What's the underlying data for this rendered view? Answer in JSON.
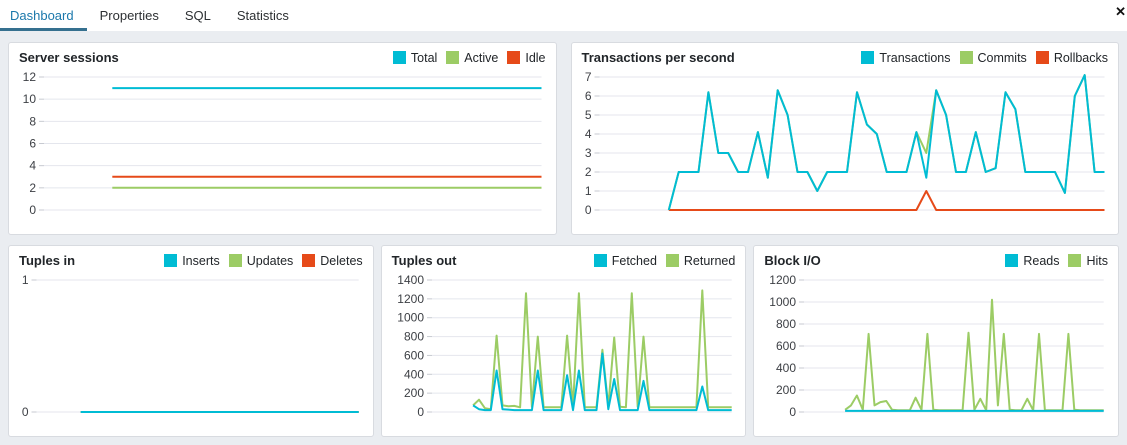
{
  "tab_bar": {
    "tabs": [
      {
        "label": "Dashboard",
        "active": true
      },
      {
        "label": "Properties",
        "active": false
      },
      {
        "label": "SQL",
        "active": false
      },
      {
        "label": "Statistics",
        "active": false
      }
    ],
    "close_icon": "✕"
  },
  "colors": {
    "cyan": "#00bcd4",
    "green": "#9ccc65",
    "red": "#e64a19",
    "active_tab": "#1b78ab",
    "gridline": "#e4e6ed"
  },
  "chart_data": [
    {
      "type": "line",
      "title": "Server sessions",
      "ylim": [
        0,
        12
      ],
      "yticks": [
        0,
        2,
        4,
        6,
        8,
        10,
        12
      ],
      "legend_position": "top-right",
      "grid": "horizontal",
      "series": [
        {
          "name": "Total",
          "color": "#00bcd4",
          "values": [
            null,
            null,
            null,
            null,
            null,
            null,
            null,
            11,
            11,
            11,
            11,
            11,
            11,
            11,
            11,
            11,
            11,
            11,
            11,
            11,
            11,
            11,
            11,
            11,
            11,
            11,
            11,
            11,
            11,
            11,
            11,
            11,
            11,
            11,
            11,
            11,
            11,
            11,
            11,
            11,
            11,
            11,
            11,
            11,
            11,
            11,
            11,
            11,
            11,
            11,
            11,
            11
          ]
        },
        {
          "name": "Active",
          "color": "#9ccc65",
          "values": [
            null,
            null,
            null,
            null,
            null,
            null,
            null,
            2,
            2,
            2,
            2,
            2,
            2,
            2,
            2,
            2,
            2,
            2,
            2,
            2,
            2,
            2,
            2,
            2,
            2,
            2,
            2,
            2,
            2,
            2,
            2,
            2,
            2,
            2,
            2,
            2,
            2,
            2,
            2,
            2,
            2,
            2,
            2,
            2,
            2,
            2,
            2,
            2,
            2,
            2,
            2,
            2
          ]
        },
        {
          "name": "Idle",
          "color": "#e64a19",
          "values": [
            null,
            null,
            null,
            null,
            null,
            null,
            null,
            3,
            3,
            3,
            3,
            3,
            3,
            3,
            3,
            3,
            3,
            3,
            3,
            3,
            3,
            3,
            3,
            3,
            3,
            3,
            3,
            3,
            3,
            3,
            3,
            3,
            3,
            3,
            3,
            3,
            3,
            3,
            3,
            3,
            3,
            3,
            3,
            3,
            3,
            3,
            3,
            3,
            3,
            3,
            3,
            3
          ]
        }
      ]
    },
    {
      "type": "line",
      "title": "Transactions per second",
      "ylim": [
        0,
        7
      ],
      "yticks": [
        0,
        1,
        2,
        3,
        4,
        5,
        6,
        7
      ],
      "legend_position": "top-right",
      "grid": "horizontal",
      "series": [
        {
          "name": "Transactions",
          "color": "#00bcd4",
          "values": [
            null,
            null,
            null,
            null,
            null,
            null,
            null,
            0,
            2,
            2,
            2,
            6.2,
            3,
            3,
            2,
            2,
            4.1,
            1.7,
            6.3,
            5,
            2,
            2,
            1,
            2,
            2,
            2,
            6.2,
            4.5,
            4,
            2,
            2,
            2,
            4.1,
            1.7,
            6.3,
            5,
            2,
            2,
            4.1,
            2,
            2.2,
            6.2,
            5.3,
            2,
            2,
            2,
            2,
            0.9,
            6,
            7.1,
            2,
            2
          ]
        },
        {
          "name": "Commits",
          "color": "#9ccc65",
          "values": [
            null,
            null,
            null,
            null,
            null,
            null,
            null,
            0,
            2,
            2,
            2,
            6.2,
            3,
            3,
            2,
            2,
            4.1,
            1.7,
            6.3,
            5,
            2,
            2,
            1,
            2,
            2,
            2,
            6.2,
            4.5,
            4,
            2,
            2,
            2,
            4.1,
            3,
            6.3,
            5,
            2,
            2,
            4.1,
            2,
            2.2,
            6.2,
            5.3,
            2,
            2,
            2,
            2,
            0.9,
            6,
            7.1,
            2,
            2
          ]
        },
        {
          "name": "Rollbacks",
          "color": "#e64a19",
          "values": [
            null,
            null,
            null,
            null,
            null,
            null,
            null,
            0,
            0,
            0,
            0,
            0,
            0,
            0,
            0,
            0,
            0,
            0,
            0,
            0,
            0,
            0,
            0,
            0,
            0,
            0,
            0,
            0,
            0,
            0,
            0,
            0,
            0,
            1,
            0,
            0,
            0,
            0,
            0,
            0,
            0,
            0,
            0,
            0,
            0,
            0,
            0,
            0,
            0,
            0,
            0,
            0
          ]
        }
      ]
    },
    {
      "type": "line",
      "title": "Tuples in",
      "ylim": [
        0,
        1
      ],
      "yticks": [
        0,
        1
      ],
      "legend_position": "top-right",
      "grid": "horizontal",
      "series": [
        {
          "name": "Inserts",
          "color": "#00bcd4",
          "values": [
            null,
            null,
            null,
            null,
            null,
            null,
            null,
            0,
            0,
            0,
            0,
            0,
            0,
            0,
            0,
            0,
            0,
            0,
            0,
            0,
            0,
            0,
            0,
            0,
            0,
            0,
            0,
            0,
            0,
            0,
            0,
            0,
            0,
            0,
            0,
            0,
            0,
            0,
            0,
            0,
            0,
            0,
            0,
            0,
            0,
            0,
            0,
            0,
            0,
            0,
            0,
            0
          ]
        },
        {
          "name": "Updates",
          "color": "#9ccc65",
          "values": [
            null,
            null,
            null,
            null,
            null,
            null,
            null,
            0,
            0,
            0,
            0,
            0,
            0,
            0,
            0,
            0,
            0,
            0,
            0,
            0,
            0,
            0,
            0,
            0,
            0,
            0,
            0,
            0,
            0,
            0,
            0,
            0,
            0,
            0,
            0,
            0,
            0,
            0,
            0,
            0,
            0,
            0,
            0,
            0,
            0,
            0,
            0,
            0,
            0,
            0,
            0,
            0
          ]
        },
        {
          "name": "Deletes",
          "color": "#e64a19",
          "values": [
            null,
            null,
            null,
            null,
            null,
            null,
            null,
            0,
            0,
            0,
            0,
            0,
            0,
            0,
            0,
            0,
            0,
            0,
            0,
            0,
            0,
            0,
            0,
            0,
            0,
            0,
            0,
            0,
            0,
            0,
            0,
            0,
            0,
            0,
            0,
            0,
            0,
            0,
            0,
            0,
            0,
            0,
            0,
            0,
            0,
            0,
            0,
            0,
            0,
            0,
            0,
            0
          ]
        }
      ]
    },
    {
      "type": "line",
      "title": "Tuples out",
      "ylim": [
        0,
        1400
      ],
      "yticks": [
        0,
        200,
        400,
        600,
        800,
        1000,
        1200,
        1400
      ],
      "legend_position": "top-right",
      "grid": "horizontal",
      "series": [
        {
          "name": "Fetched",
          "color": "#00bcd4",
          "values": [
            null,
            null,
            null,
            null,
            null,
            null,
            null,
            70,
            30,
            20,
            20,
            440,
            30,
            25,
            20,
            20,
            20,
            20,
            440,
            20,
            20,
            20,
            20,
            390,
            20,
            440,
            20,
            20,
            20,
            620,
            30,
            350,
            20,
            20,
            20,
            20,
            330,
            20,
            20,
            20,
            20,
            20,
            20,
            20,
            20,
            20,
            270,
            20,
            20,
            20,
            20,
            20
          ]
        },
        {
          "name": "Returned",
          "color": "#9ccc65",
          "values": [
            null,
            null,
            null,
            null,
            null,
            null,
            null,
            70,
            130,
            40,
            30,
            810,
            70,
            60,
            65,
            50,
            1260,
            55,
            800,
            50,
            50,
            50,
            50,
            810,
            55,
            1260,
            50,
            50,
            50,
            660,
            60,
            790,
            55,
            50,
            1260,
            55,
            800,
            50,
            50,
            50,
            50,
            50,
            50,
            50,
            50,
            50,
            1290,
            50,
            50,
            50,
            50,
            50
          ]
        }
      ]
    },
    {
      "type": "line",
      "title": "Block I/O",
      "ylim": [
        0,
        1200
      ],
      "yticks": [
        0,
        200,
        400,
        600,
        800,
        1000,
        1200
      ],
      "legend_position": "top-right",
      "grid": "horizontal",
      "series": [
        {
          "name": "Reads",
          "color": "#00bcd4",
          "values": [
            null,
            null,
            null,
            null,
            null,
            null,
            null,
            10,
            10,
            10,
            10,
            10,
            10,
            10,
            10,
            10,
            10,
            10,
            10,
            10,
            10,
            10,
            10,
            10,
            10,
            10,
            10,
            10,
            10,
            10,
            10,
            10,
            10,
            10,
            10,
            10,
            10,
            10,
            10,
            10,
            10,
            10,
            10,
            10,
            10,
            10,
            10,
            10,
            10,
            10,
            10,
            10
          ]
        },
        {
          "name": "Hits",
          "color": "#9ccc65",
          "values": [
            null,
            null,
            null,
            null,
            null,
            null,
            null,
            20,
            60,
            150,
            20,
            710,
            60,
            90,
            100,
            20,
            15,
            15,
            15,
            130,
            20,
            710,
            20,
            15,
            15,
            15,
            15,
            15,
            720,
            20,
            120,
            15,
            1020,
            60,
            710,
            20,
            15,
            15,
            120,
            15,
            710,
            15,
            15,
            15,
            15,
            710,
            20,
            15,
            15,
            15,
            15,
            15
          ]
        }
      ]
    }
  ]
}
